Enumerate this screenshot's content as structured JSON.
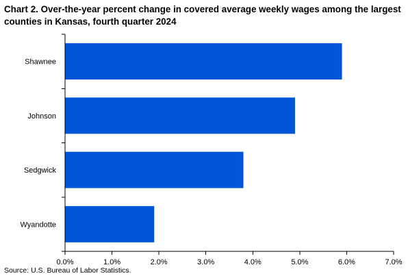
{
  "title": "Chart 2. Over-the-year percent change in covered average weekly wages among the largest counties in Kansas, fourth quarter 2024",
  "source": "Source: U.S. Bureau of Labor Statistics.",
  "colors": {
    "bar": "#0057d6",
    "axis": "#000000",
    "grid": "#d9d9d9"
  },
  "chart_data": {
    "type": "bar",
    "orientation": "horizontal",
    "categories": [
      "Shawnee",
      "Johnson",
      "Sedgwick",
      "Wyandotte"
    ],
    "values": [
      5.9,
      4.9,
      3.8,
      1.9
    ],
    "unit": "%",
    "xlim": [
      0,
      7
    ],
    "x_ticks": [
      0,
      1,
      2,
      3,
      4,
      5,
      6,
      7
    ],
    "x_tick_labels": [
      "0.0%",
      "1.0%",
      "2.0%",
      "3.0%",
      "4.0%",
      "5.0%",
      "6.0%",
      "7.0%"
    ],
    "xlabel": "",
    "ylabel": "",
    "grid": false,
    "legend": "none"
  }
}
